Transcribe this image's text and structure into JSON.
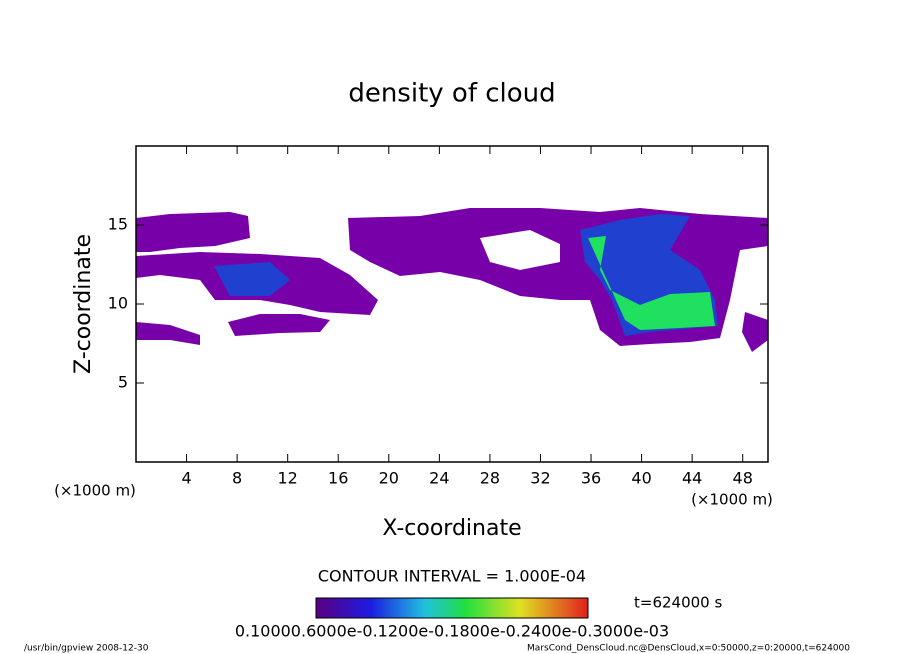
{
  "chart_data": {
    "type": "contour",
    "title": "density of cloud",
    "x_label": "X-coordinate",
    "y_label": "Z-coordinate",
    "x_unit": "(×1000 m)",
    "y_unit": "(×1000 m)",
    "xlim": [
      0,
      50
    ],
    "xticks": [
      4,
      8,
      12,
      16,
      20,
      24,
      28,
      32,
      36,
      40,
      44,
      48
    ],
    "ylim": [
      0,
      20
    ],
    "yticks": [
      5,
      10,
      15
    ],
    "contour_interval": "CONTOUR INTERVAL = 1.000E-04",
    "time_label": "t=624000 s",
    "colorbar_labels": "0.10000.6000e-0.1200e-0.1800e-0.2400e-0.3000e-03",
    "footer_left": "/usr/bin/gpview   2008-12-30",
    "footer_right": "MarsCond_DensCloud.nc@DensCloud,x=0:50000,z=0:20000,t=624000"
  }
}
